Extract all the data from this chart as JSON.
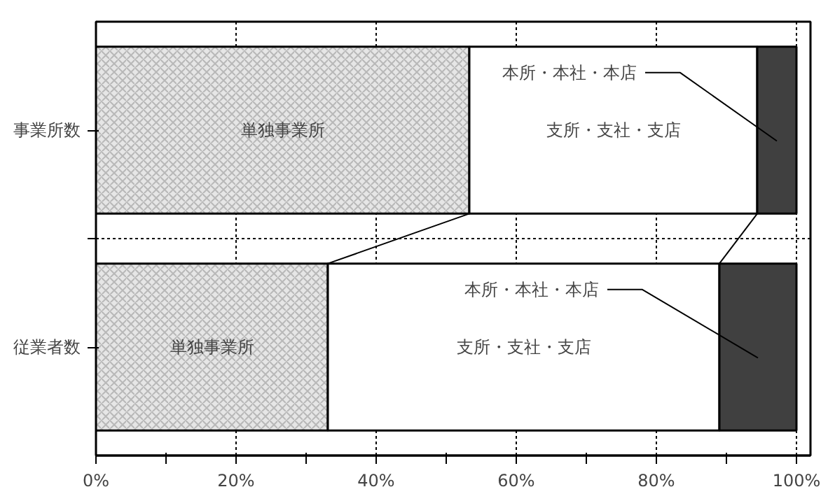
{
  "chart_data": {
    "type": "bar",
    "orientation": "horizontal",
    "stacked": true,
    "categories": [
      "事業所数",
      "従業者数"
    ],
    "series": [
      {
        "name": "単独事業所",
        "color": "#e6e6e6",
        "values": [
          53.3,
          33.1
        ]
      },
      {
        "name": "支所・支社・支店",
        "color": "#ffffff",
        "values": [
          41.1,
          55.9
        ]
      },
      {
        "name": "本所・本社・本店",
        "color": "#404040",
        "values": [
          5.6,
          11.0
        ]
      }
    ],
    "xlim": [
      0,
      102
    ],
    "xticks": [
      {
        "value": 0,
        "label": "0%"
      },
      {
        "value": 10,
        "label": null
      },
      {
        "value": 20,
        "label": "20%"
      },
      {
        "value": 30,
        "label": null
      },
      {
        "value": 40,
        "label": "40%"
      },
      {
        "value": 50,
        "label": null
      },
      {
        "value": 60,
        "label": "60%"
      },
      {
        "value": 70,
        "label": null
      },
      {
        "value": 80,
        "label": "80%"
      },
      {
        "value": 90,
        "label": null
      },
      {
        "value": 100,
        "label": "100%"
      }
    ],
    "grid": true,
    "legend": false
  }
}
